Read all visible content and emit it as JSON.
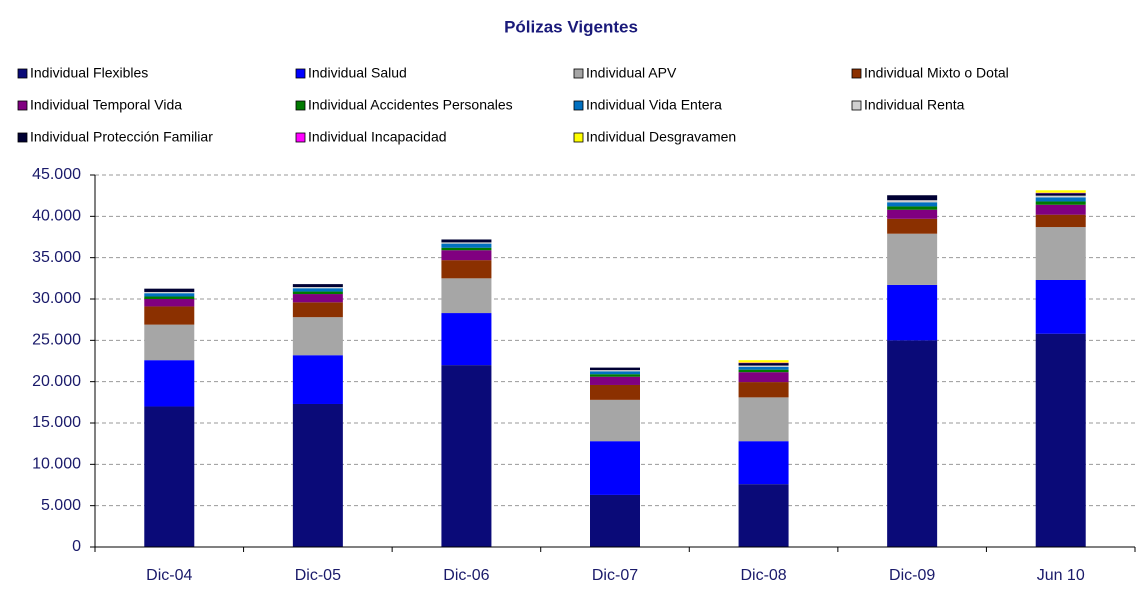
{
  "chart_data": {
    "type": "stacked_bar",
    "title": "Pólizas Vigentes",
    "categories": [
      "Dic-04",
      "Dic-05",
      "Dic-06",
      "Dic-07",
      "Dic-08",
      "Dic-09",
      "Jun 10"
    ],
    "series": [
      {
        "name": "Individual Flexibles",
        "color": "#0a0a78",
        "values": [
          17000,
          17300,
          22000,
          6300,
          7600,
          25000,
          25800
        ]
      },
      {
        "name": "Individual Salud",
        "color": "#0000ff",
        "values": [
          5600,
          5900,
          6300,
          6500,
          5200,
          6700,
          6500
        ]
      },
      {
        "name": "Individual APV",
        "color": "#a6a6a6",
        "values": [
          4300,
          4600,
          4200,
          5000,
          5300,
          6200,
          6400
        ]
      },
      {
        "name": "Individual Mixto o Dotal",
        "color": "#8b3000",
        "values": [
          2200,
          1800,
          2200,
          1800,
          1850,
          1800,
          1500
        ]
      },
      {
        "name": "Individual Temporal Vida",
        "color": "#800080",
        "values": [
          900,
          1000,
          1200,
          1000,
          1200,
          1100,
          1200
        ]
      },
      {
        "name": "Individual Accidentes Personales",
        "color": "#007a00",
        "values": [
          300,
          300,
          300,
          300,
          300,
          400,
          400
        ]
      },
      {
        "name": "Individual Vida Entera",
        "color": "#0070c0",
        "values": [
          400,
          400,
          500,
          350,
          350,
          500,
          500
        ]
      },
      {
        "name": "Individual Renta",
        "color": "#d0d0d0",
        "values": [
          150,
          150,
          150,
          150,
          150,
          250,
          200
        ]
      },
      {
        "name": "Individual Protección Familiar",
        "color": "#000033",
        "values": [
          400,
          350,
          350,
          300,
          300,
          600,
          300
        ]
      },
      {
        "name": "Individual Incapacidad",
        "color": "#ff00ff",
        "values": [
          0,
          0,
          0,
          0,
          50,
          0,
          50
        ]
      },
      {
        "name": "Individual Desgravamen",
        "color": "#ffff00",
        "values": [
          0,
          0,
          0,
          0,
          300,
          0,
          300
        ]
      }
    ],
    "ylim": [
      0,
      45000
    ],
    "yticks": [
      0,
      {
        "value": 5000,
        "label": "5.000"
      },
      {
        "value": 10000,
        "label": "10.000"
      },
      {
        "value": 15000,
        "label": "15.000"
      },
      {
        "value": 20000,
        "label": "20.000"
      },
      {
        "value": 25000,
        "label": "25.000"
      },
      {
        "value": 30000,
        "label": "30.000"
      },
      {
        "value": 35000,
        "label": "35.000"
      },
      {
        "value": 40000,
        "label": "40.000"
      },
      {
        "value": 45000,
        "label": "45.000"
      }
    ],
    "grid": true
  }
}
